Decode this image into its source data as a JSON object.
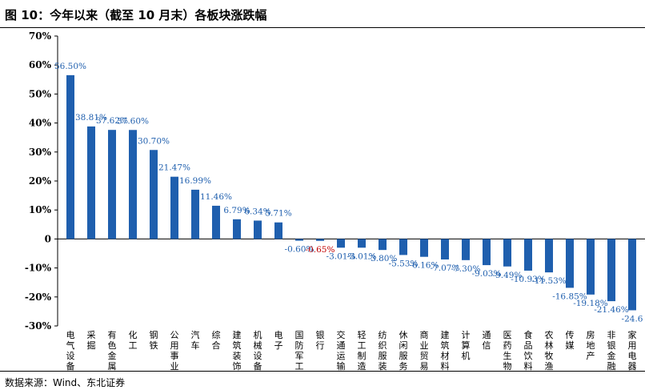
{
  "figure": {
    "title": "图 10：今年以来（截至 10 月末）各板块涨跌幅",
    "source": "数据来源：Wind、东北证券"
  },
  "colors": {
    "positive": "#1f5fae",
    "negative_highlight": "#c00000",
    "axis": "#000000"
  },
  "chart_data": {
    "type": "bar",
    "title": "",
    "xlabel": "",
    "ylabel": "",
    "ylim": [
      -30,
      70
    ],
    "yticks": [
      "70%",
      "60%",
      "50%",
      "40%",
      "30%",
      "20%",
      "10%",
      "0",
      "-10%",
      "-20%",
      "-30%"
    ],
    "grid": false,
    "categories": [
      "电气设备",
      "采掘",
      "有色金属",
      "化工",
      "钢铁",
      "公用事业",
      "汽车",
      "综合",
      "建筑装饰",
      "机械设备",
      "电子",
      "国防军工",
      "银行",
      "交通运输",
      "轻工制造",
      "纺织服装",
      "休闲服务",
      "商业贸易",
      "建筑材料",
      "计算机",
      "通信",
      "医药生物",
      "食品饮料",
      "农林牧渔",
      "传媒",
      "房地产",
      "非银金融",
      "家用电器"
    ],
    "values": [
      56.5,
      38.81,
      37.62,
      37.6,
      30.7,
      21.47,
      16.99,
      11.46,
      6.79,
      6.34,
      5.71,
      -0.6,
      -0.65,
      -3.01,
      -3.01,
      -3.8,
      -5.53,
      -6.16,
      -7.07,
      -7.3,
      -9.03,
      -9.49,
      -10.93,
      -11.53,
      -16.85,
      -19.18,
      -21.46,
      -24.6
    ],
    "data_labels": [
      "56.50%",
      "38.81%",
      "37.62%",
      "37.60%",
      "30.70%",
      "21.47%",
      "16.99%",
      "11.46%",
      "6.79%",
      "6.34%",
      "5.71%",
      "-0.60%",
      "-0.65%",
      "-3.01%",
      "-3.01%",
      "-3.80%",
      "-5.53%",
      "-6.16%",
      "-7.07%",
      "-7.30%",
      "-9.03%",
      "-9.49%",
      "-10.93%",
      "-11.53%",
      "-16.85%",
      "-19.18%",
      "-21.46%",
      "-24.6"
    ],
    "highlight_index": 12
  }
}
